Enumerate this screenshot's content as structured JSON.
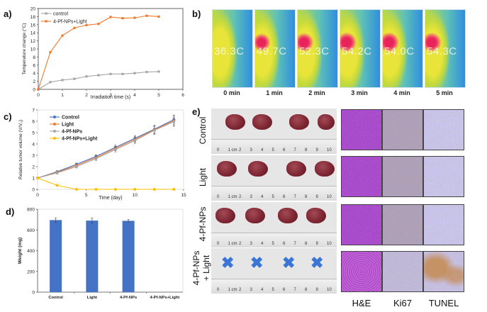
{
  "panel_labels": {
    "a": "a)",
    "b": "b)",
    "c": "c)",
    "d": "d)",
    "e": "e)"
  },
  "chart_data": [
    {
      "id": "a",
      "type": "line",
      "title": "",
      "xlabel": "Irradiation time (s)",
      "ylabel": "Temperature change (°C)",
      "xlim": [
        0,
        6
      ],
      "ylim": [
        0,
        20
      ],
      "xticks": [
        0,
        1,
        2,
        3,
        4,
        5,
        6
      ],
      "yticks": [
        0,
        2,
        4,
        6,
        8,
        10,
        12,
        14,
        16,
        18,
        20
      ],
      "legend_position": "top-left",
      "grid": false,
      "x": [
        0,
        0.5,
        1,
        1.5,
        2,
        2.5,
        3,
        3.5,
        4,
        4.5,
        5
      ],
      "series": [
        {
          "name": "control",
          "color": "#a5a5a5",
          "values": [
            0,
            1.8,
            2.3,
            2.6,
            3.2,
            3.5,
            3.8,
            3.8,
            4.0,
            4.3,
            4.4
          ]
        },
        {
          "name": "4-Pf-NPs+Light",
          "color": "#f07a2b",
          "values": [
            0,
            9.2,
            13.3,
            15.2,
            15.9,
            16.2,
            17.9,
            17.6,
            17.7,
            18.2,
            18.0
          ]
        }
      ]
    },
    {
      "id": "c",
      "type": "line",
      "title": "",
      "xlabel": "Time (day)",
      "ylabel": "Relative tumor volume (V/V₀)",
      "xlim": [
        0,
        15
      ],
      "ylim": [
        0,
        7
      ],
      "xticks": [
        0,
        5,
        10,
        15
      ],
      "yticks": [
        0,
        1,
        2,
        3,
        4,
        5,
        6,
        7
      ],
      "legend_position": "top-left",
      "grid": false,
      "x": [
        0,
        2,
        4,
        6,
        8,
        10,
        12,
        14
      ],
      "series": [
        {
          "name": "Control",
          "color": "#4472c4",
          "values": [
            1,
            1.55,
            2.2,
            2.9,
            3.7,
            4.5,
            5.3,
            6.15
          ],
          "errors": [
            0,
            0.1,
            0.12,
            0.15,
            0.2,
            0.25,
            0.35,
            0.4
          ]
        },
        {
          "name": "Light",
          "color": "#ed7d31",
          "values": [
            1,
            1.5,
            2.1,
            2.8,
            3.6,
            4.4,
            5.25,
            6.05
          ],
          "errors": [
            0,
            0.1,
            0.12,
            0.15,
            0.2,
            0.25,
            0.35,
            0.4
          ]
        },
        {
          "name": "4-Pf-NPs",
          "color": "#a5a5a5",
          "values": [
            1,
            1.45,
            2.0,
            2.7,
            3.5,
            4.3,
            5.2,
            5.95
          ],
          "errors": [
            0,
            0.1,
            0.12,
            0.15,
            0.2,
            0.25,
            0.35,
            0.4
          ]
        },
        {
          "name": "4-Pf-NPs+Light",
          "color": "#ffc000",
          "values": [
            1,
            0.35,
            0,
            0,
            0,
            0,
            0,
            0
          ],
          "errors": [
            0,
            0,
            0,
            0,
            0,
            0,
            0,
            0
          ]
        }
      ]
    },
    {
      "id": "d",
      "type": "bar",
      "title": "",
      "xlabel": "",
      "ylabel": "Weight (mg)",
      "ylim": [
        0,
        800
      ],
      "yticks": [
        0,
        200,
        400,
        600,
        800
      ],
      "grid": false,
      "categories": [
        "Control",
        "Light",
        "4-Pf-NPs",
        "4-Pf-NPs+Light"
      ],
      "values": [
        695,
        690,
        688,
        0
      ],
      "errors": [
        22,
        25,
        12,
        0
      ],
      "color": "#4472c4"
    }
  ],
  "thermal": {
    "frames": [
      {
        "time": "0 min",
        "reading": "36.3C",
        "hot": 0
      },
      {
        "time": "1 min",
        "reading": "49.7C",
        "hot": 0.6
      },
      {
        "time": "2 min",
        "reading": "52.3C",
        "hot": 0.8
      },
      {
        "time": "3 min",
        "reading": "54.2C",
        "hot": 1
      },
      {
        "time": "4 min",
        "reading": "54.0C",
        "hot": 1
      },
      {
        "time": "5 min",
        "reading": "54.3C",
        "hot": 0.9
      }
    ]
  },
  "tumor_photos": {
    "rows": [
      {
        "label": "Control",
        "count": 4
      },
      {
        "label": "Light",
        "count": 4
      },
      {
        "label": "4-Pf-NPs",
        "count": 4
      },
      {
        "label": "4-Pf-NPs\n+ Light",
        "label_line1": "4-Pf-NPs",
        "label_line2": "+ Light",
        "count": 0,
        "marker": "✖"
      }
    ],
    "ruler_numbers": [
      "0",
      "1 cm",
      "2",
      "3",
      "4",
      "5",
      "6",
      "7",
      "8",
      "9",
      "10"
    ]
  },
  "histology": {
    "columns": [
      "H&E",
      "Ki67",
      "TUNEL"
    ]
  }
}
